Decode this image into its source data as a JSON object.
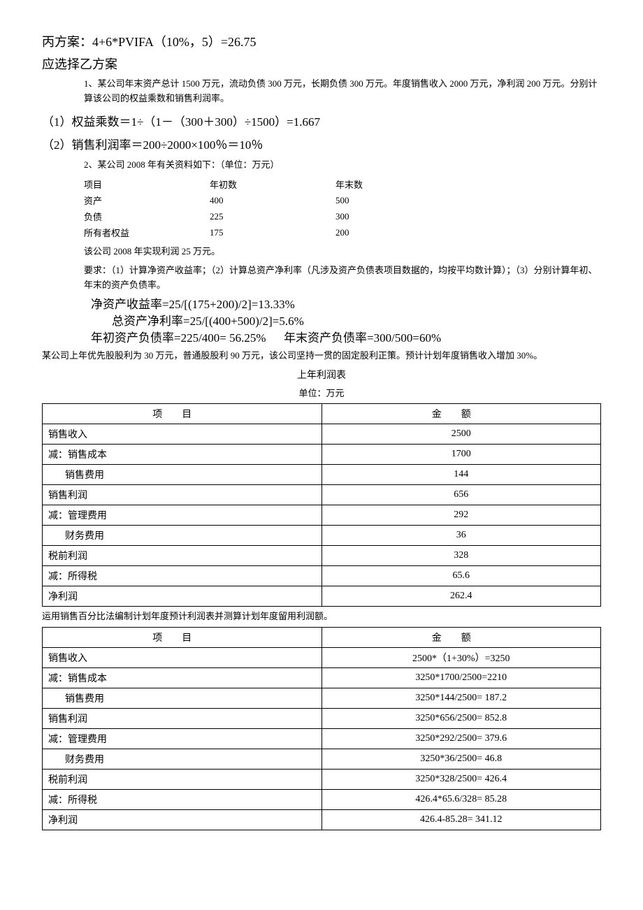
{
  "top": {
    "line1": "丙方案：4+6*PVIFA（10%，5）=26.75",
    "line2": "应选择乙方案"
  },
  "q1": {
    "text": "1、某公司年末资产总计 1500 万元，流动负债 300 万元，长期负债 300 万元。年度销售收入 2000 万元，净利润 200 万元。分别计算该公司的权益乘数和销售利润率。",
    "a1": "（1）权益乘数＝1÷（1－（300＋300）÷1500）=1.667",
    "a2": "（2）销售利润率＝200÷2000×100％＝10％"
  },
  "q2": {
    "intro": "2、某公司 2008 年有关资料如下：（单位：万元）",
    "cols": [
      "项目",
      "年初数",
      "年末数"
    ],
    "rows": [
      [
        "资产",
        "400",
        "500"
      ],
      [
        "负债",
        "225",
        "300"
      ],
      [
        "所有者权益",
        "175",
        "200"
      ]
    ],
    "after1": "该公司 2008 年实现利润 25 万元。",
    "after2": "要求：（1）计算净资产收益率；（2）计算总资产净利率（凡涉及资产负债表项目数据的，均按平均数计算）；（3）分别计算年初、年末的资产负债率。",
    "ans1": "净资产收益率=25/[(175+200)/2]=13.33%",
    "ans2": "总资产净利率=25/[(400+500)/2]=5.6%",
    "ans3a": "年初资产负债率=225/400= 56.25%",
    "ans3b": "年末资产负债率=300/500=60%"
  },
  "q3": {
    "intro": "某公司上年优先股股利为 30 万元，普通股股利 90 万元，该公司坚持一贯的固定股利正策。预计计划年度销售收入增加 30%。",
    "table1_title": "上年利润表",
    "unit": "单位：万元",
    "headers": [
      "项目",
      "金额"
    ],
    "table1_rows": [
      {
        "item": "销售收入",
        "amt": "2500",
        "sub": false
      },
      {
        "item": "减：销售成本",
        "amt": "1700",
        "sub": false
      },
      {
        "item": "销售费用",
        "amt": "144",
        "sub": true
      },
      {
        "item": "销售利润",
        "amt": "656",
        "sub": false
      },
      {
        "item": "减：管理费用",
        "amt": "292",
        "sub": false
      },
      {
        "item": "财务费用",
        "amt": "36",
        "sub": true
      },
      {
        "item": "税前利润",
        "amt": "328",
        "sub": false
      },
      {
        "item": "减：所得税",
        "amt": "65.6",
        "sub": false
      },
      {
        "item": "净利润",
        "amt": "262.4",
        "sub": false
      }
    ],
    "mid": "运用销售百分比法编制计划年度预计利润表并测算计划年度留用利润额。",
    "table2_rows": [
      {
        "item": "销售收入",
        "amt": "2500*（1+30%）=3250",
        "sub": false
      },
      {
        "item": "减：销售成本",
        "amt": "3250*1700/2500=2210",
        "sub": false
      },
      {
        "item": "销售费用",
        "amt": "3250*144/2500= 187.2",
        "sub": true
      },
      {
        "item": "销售利润",
        "amt": "3250*656/2500= 852.8",
        "sub": false
      },
      {
        "item": "减：管理费用",
        "amt": "3250*292/2500= 379.6",
        "sub": false
      },
      {
        "item": "财务费用",
        "amt": "3250*36/2500=  46.8",
        "sub": true
      },
      {
        "item": "税前利润",
        "amt": "3250*328/2500= 426.4",
        "sub": false
      },
      {
        "item": "减：所得税",
        "amt": "426.4*65.6/328=  85.28",
        "sub": false
      },
      {
        "item": "净利润",
        "amt": "426.4-85.28= 341.12",
        "sub": false
      }
    ]
  }
}
